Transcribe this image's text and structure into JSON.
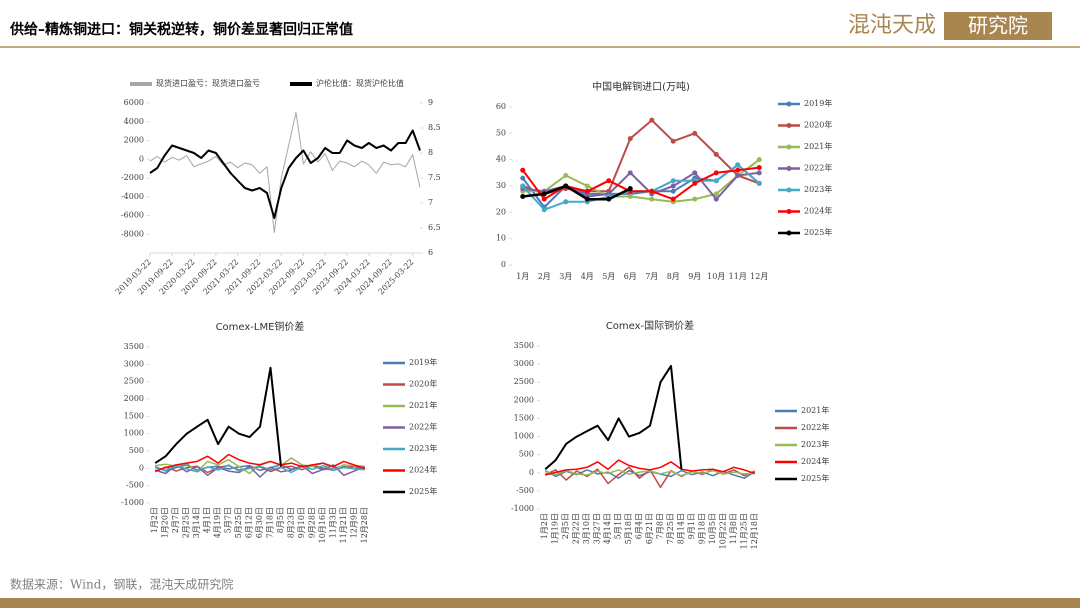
{
  "header": {
    "title": "供给–精炼铜进口：铜关税逆转，铜价差显著回归正常值",
    "logo": "混沌天成",
    "logo_box": "研究院"
  },
  "source": "数据来源：Wind，钢联，混沌天成研究院",
  "chart_data": [
    {
      "type": "line",
      "legend": "top",
      "x": [
        "2019-03-22",
        "2019-05-22",
        "2019-07-22",
        "2019-09-22",
        "2019-11-22",
        "2020-01-22",
        "2020-03-22",
        "2020-05-22",
        "2020-07-22",
        "2020-09-22",
        "2020-11-22",
        "2021-01-22",
        "2021-03-22",
        "2021-05-22",
        "2021-07-22",
        "2021-09-22",
        "2021-11-22",
        "2022-01-22",
        "2022-03-22",
        "2022-05-22",
        "2022-07-22",
        "2022-09-22",
        "2022-11-22",
        "2023-01-22",
        "2023-03-22",
        "2023-05-22",
        "2023-07-22",
        "2023-09-22",
        "2023-11-22",
        "2024-01-22",
        "2024-03-22",
        "2024-05-22",
        "2024-07-22",
        "2024-09-22",
        "2024-11-22",
        "2025-01-22",
        "2025-03-22",
        "2025-05-22"
      ],
      "xticks": [
        "2019-03-22",
        "2019-09-22",
        "2020-03-22",
        "2020-09-22",
        "2021-03-22",
        "2021-09-22",
        "2022-03-22",
        "2022-09-22",
        "2023-03-22",
        "2023-09-22",
        "2024-03-22",
        "2024-09-22",
        "2025-03-22"
      ],
      "ylim": [
        -10000,
        6000
      ],
      "yticks": [
        -8000,
        -6000,
        -4000,
        -2000,
        0,
        2000,
        4000,
        6000
      ],
      "y2lim": [
        6,
        9
      ],
      "y2ticks": [
        6,
        6.5,
        7,
        7.5,
        8,
        8.5,
        9
      ],
      "series": [
        {
          "name": "现货进口盈亏：现货进口盈亏",
          "color": "#a6a6a6",
          "values": [
            -200,
            300,
            -300,
            200,
            -100,
            400,
            -800,
            -500,
            -200,
            300,
            -600,
            -300,
            -900,
            -400,
            -600,
            -1500,
            -800,
            -7800,
            -2000,
            1500,
            5000,
            -500,
            800,
            -300,
            600,
            -1200,
            -200,
            -400,
            -800,
            -200,
            -600,
            -1500,
            -300,
            -600,
            -500,
            -800,
            500,
            -3000
          ]
        },
        {
          "name": "沪伦比值：现货沪伦比值",
          "color": "#000000",
          "axis": "y2",
          "values": [
            7.6,
            7.7,
            7.95,
            8.15,
            8.1,
            8.05,
            8.0,
            7.9,
            8.05,
            8.0,
            7.8,
            7.6,
            7.45,
            7.3,
            7.25,
            7.3,
            7.2,
            6.7,
            7.3,
            7.7,
            7.9,
            8.05,
            7.8,
            7.9,
            8.1,
            8.0,
            8.0,
            8.25,
            8.15,
            8.1,
            8.2,
            8.1,
            8.15,
            8.05,
            8.2,
            8.2,
            8.45,
            8.05
          ]
        }
      ]
    },
    {
      "type": "line",
      "legend": "right",
      "marker": true,
      "title": "中国电解铜进口(万吨)",
      "categories": [
        "1月",
        "2月",
        "3月",
        "4月",
        "5月",
        "6月",
        "7月",
        "8月",
        "9月",
        "10月",
        "11月",
        "12月"
      ],
      "ylim": [
        0,
        60
      ],
      "yticks": [
        0,
        10,
        20,
        30,
        40,
        50,
        60
      ],
      "series": [
        {
          "name": "2019年",
          "color": "#4a7ebb",
          "values": [
            33,
            22,
            30,
            27,
            27,
            27,
            28,
            28,
            33,
            32,
            38,
            31
          ]
        },
        {
          "name": "2020年",
          "color": "#be4b48",
          "values": [
            30,
            27,
            29,
            28,
            28,
            48,
            55,
            47,
            50,
            42,
            34,
            31
          ]
        },
        {
          "name": "2021年",
          "color": "#98b954",
          "values": [
            28,
            28,
            34,
            30,
            26,
            26,
            25,
            24,
            25,
            27,
            34,
            40
          ]
        },
        {
          "name": "2022年",
          "color": "#7d60a0",
          "values": [
            29,
            28,
            30,
            26,
            27,
            35,
            27,
            30,
            35,
            25,
            34,
            35
          ]
        },
        {
          "name": "2023年",
          "color": "#46aac5",
          "values": [
            30,
            21,
            24,
            24,
            26,
            28,
            28,
            32,
            32,
            32,
            38,
            31
          ]
        },
        {
          "name": "2024年",
          "color": "#ff0000",
          "values": [
            36,
            25,
            30,
            28,
            32,
            28,
            28,
            25,
            31,
            35,
            36,
            37
          ]
        },
        {
          "name": "2025年",
          "color": "#000000",
          "values": [
            26,
            27,
            30,
            25,
            25,
            29,
            null,
            null,
            null,
            null,
            null,
            null
          ]
        }
      ]
    },
    {
      "type": "line",
      "legend": "right",
      "title": "Comex-LME铜价差",
      "categories": [
        "1月2日",
        "1月20日",
        "2月7日",
        "2月25日",
        "3月14日",
        "4月1日",
        "4月19日",
        "5月7日",
        "5月25日",
        "6月12日",
        "6月30日",
        "7月18日",
        "8月5日",
        "8月23日",
        "9月10日",
        "9月28日",
        "10月16日",
        "11月3日",
        "11月21日",
        "12月9日",
        "12月28日"
      ],
      "ylim": [
        -1000,
        3500
      ],
      "yticks": [
        -1000,
        -500,
        0,
        500,
        1000,
        1500,
        2000,
        2500,
        3000,
        3500
      ],
      "series": [
        {
          "name": "2019年",
          "color": "#4a7ebb",
          "values": [
            50,
            -80,
            20,
            100,
            -50,
            30,
            60,
            -20,
            40,
            80,
            -60,
            20,
            100,
            -30,
            50,
            70,
            -40,
            10,
            60,
            -20,
            30
          ]
        },
        {
          "name": "2020年",
          "color": "#be4b48",
          "values": [
            -100,
            40,
            -80,
            20,
            60,
            -120,
            30,
            80,
            -50,
            10,
            40,
            -90,
            20,
            60,
            -40,
            80,
            10,
            -60,
            30,
            50,
            -20
          ]
        },
        {
          "name": "2021年",
          "color": "#98b954",
          "values": [
            80,
            120,
            60,
            150,
            -100,
            200,
            100,
            250,
            50,
            -150,
            120,
            200,
            80,
            300,
            100,
            50,
            150,
            -50,
            100,
            80,
            60
          ]
        },
        {
          "name": "2022年",
          "color": "#7d60a0",
          "values": [
            -50,
            -150,
            100,
            -100,
            50,
            -200,
            20,
            -80,
            -120,
            60,
            -250,
            30,
            -100,
            -50,
            80,
            -150,
            -30,
            100,
            -200,
            -80,
            40
          ]
        },
        {
          "name": "2023年",
          "color": "#46aac5",
          "values": [
            20,
            -60,
            80,
            -20,
            -100,
            40,
            -50,
            100,
            -80,
            0,
            60,
            -40,
            30,
            -120,
            50,
            -30,
            80,
            -60,
            20,
            -10,
            -40
          ]
        },
        {
          "name": "2024年",
          "color": "#ff0000",
          "values": [
            -80,
            20,
            100,
            150,
            200,
            350,
            150,
            400,
            250,
            150,
            100,
            200,
            100,
            150,
            50,
            100,
            150,
            50,
            200,
            100,
            0
          ]
        },
        {
          "name": "2025年",
          "color": "#000000",
          "values": [
            150,
            350,
            700,
            1000,
            1200,
            1400,
            700,
            1200,
            1000,
            900,
            1200,
            2900,
            50,
            null,
            null,
            null,
            null,
            null,
            null,
            null,
            null
          ]
        }
      ]
    },
    {
      "type": "line",
      "legend": "right",
      "title": "Comex-国际铜价差",
      "categories": [
        "1月2日",
        "1月19日",
        "2月5日",
        "2月22日",
        "3月10日",
        "3月27日",
        "4月14日",
        "5月1日",
        "5月18日",
        "6月4日",
        "6月21日",
        "7月8日",
        "7月25日",
        "8月14日",
        "9月1日",
        "9月18日",
        "10月5日",
        "10月22日",
        "11月8日",
        "11月25日",
        "12月18日"
      ],
      "ylim": [
        -1000,
        3500
      ],
      "yticks": [
        -1000,
        -500,
        0,
        500,
        1000,
        1500,
        2000,
        2500,
        3000,
        3500
      ],
      "series": [
        {
          "name": "2021年",
          "color": "#4a7ebb",
          "values": [
            60,
            -100,
            40,
            -50,
            80,
            -30,
            20,
            -150,
            60,
            -80,
            30,
            -40,
            -100,
            60,
            -50,
            20,
            -80,
            40,
            -60,
            -150,
            30
          ]
        },
        {
          "name": "2022年",
          "color": "#be4b48",
          "values": [
            -50,
            80,
            -200,
            50,
            -100,
            100,
            -300,
            -50,
            150,
            -150,
            80,
            -400,
            60,
            -100,
            50,
            -50,
            100,
            -30,
            80,
            -80,
            50
          ]
        },
        {
          "name": "2023年",
          "color": "#98b954",
          "values": [
            30,
            -50,
            60,
            -30,
            -60,
            40,
            -20,
            80,
            -40,
            20,
            50,
            -30,
            40,
            -80,
            30,
            -20,
            60,
            -40,
            20,
            -30,
            -20
          ]
        },
        {
          "name": "2024年",
          "color": "#ff0000",
          "values": [
            -60,
            10,
            80,
            100,
            150,
            300,
            100,
            350,
            200,
            120,
            80,
            150,
            300,
            100,
            50,
            80,
            100,
            30,
            150,
            80,
            -20
          ]
        },
        {
          "name": "2025年",
          "color": "#000000",
          "values": [
            100,
            350,
            800,
            1000,
            1150,
            1300,
            900,
            1500,
            1000,
            1100,
            1300,
            2500,
            2950,
            100,
            null,
            null,
            null,
            null,
            null,
            null,
            null
          ]
        }
      ]
    }
  ]
}
